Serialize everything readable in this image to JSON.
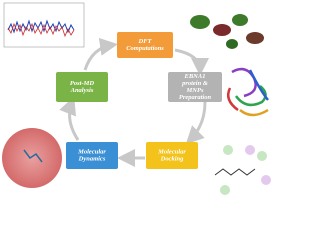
{
  "nodes": [
    {
      "lines": [
        "DFT",
        "Computations"
      ],
      "color": "#f29b38"
    },
    {
      "lines": [
        "EBNA1",
        "protein &",
        "MNPs",
        "Preparation"
      ],
      "color": "#b3b3b3"
    },
    {
      "lines": [
        "Molecular",
        "Docking"
      ],
      "color": "#f3c21b"
    },
    {
      "lines": [
        "Molecular",
        "Dynamics"
      ],
      "color": "#3b8fd4"
    },
    {
      "lines": [
        "Post-MD",
        "Analysis"
      ],
      "color": "#7bb446"
    }
  ]
}
